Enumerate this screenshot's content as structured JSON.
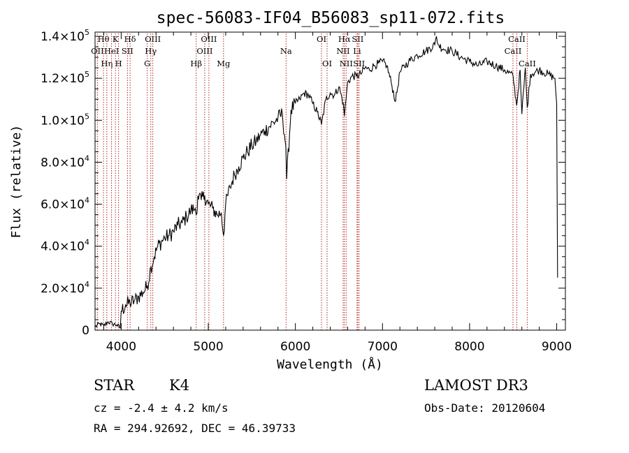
{
  "chart_data": {
    "type": "line",
    "title": "spec-56083-IF04_B56083_sp11-072.fits",
    "xlabel": "Wavelength (Å)",
    "ylabel": "Flux (relative)",
    "xlim": [
      3700,
      9100
    ],
    "ylim": [
      0,
      142000
    ],
    "x_ticks": [
      {
        "value": 4000,
        "label": "4000"
      },
      {
        "value": 5000,
        "label": "5000"
      },
      {
        "value": 6000,
        "label": "6000"
      },
      {
        "value": 7000,
        "label": "7000"
      },
      {
        "value": 8000,
        "label": "8000"
      },
      {
        "value": 9000,
        "label": "9000"
      }
    ],
    "y_ticks": [
      {
        "value": 0,
        "mant": "0",
        "exp": ""
      },
      {
        "value": 20000,
        "mant": "2.0×10",
        "exp": "4"
      },
      {
        "value": 40000,
        "mant": "4.0×10",
        "exp": "4"
      },
      {
        "value": 60000,
        "mant": "6.0×10",
        "exp": "4"
      },
      {
        "value": 80000,
        "mant": "8.0×10",
        "exp": "4"
      },
      {
        "value": 100000,
        "mant": "1.0×10",
        "exp": "5"
      },
      {
        "value": 120000,
        "mant": "1.2×10",
        "exp": "5"
      },
      {
        "value": 140000,
        "mant": "1.4×10",
        "exp": "5"
      }
    ],
    "series": [
      {
        "name": "spectrum",
        "x": [
          3700,
          3750,
          3800,
          3850,
          3900,
          3950,
          3990,
          4000,
          4050,
          4100,
          4150,
          4200,
          4250,
          4300,
          4340,
          4380,
          4420,
          4460,
          4500,
          4550,
          4600,
          4650,
          4700,
          4750,
          4800,
          4850,
          4861,
          4880,
          4920,
          4960,
          5000,
          5050,
          5100,
          5150,
          5175,
          5200,
          5250,
          5300,
          5350,
          5400,
          5450,
          5500,
          5550,
          5600,
          5650,
          5700,
          5750,
          5800,
          5850,
          5890,
          5900,
          5950,
          6000,
          6050,
          6100,
          6150,
          6200,
          6250,
          6300,
          6350,
          6400,
          6450,
          6500,
          6550,
          6563,
          6600,
          6650,
          6700,
          6750,
          6800,
          6850,
          6900,
          6950,
          7000,
          7050,
          7100,
          7150,
          7200,
          7300,
          7400,
          7500,
          7600,
          7620,
          7640,
          7700,
          7800,
          7900,
          8000,
          8100,
          8200,
          8300,
          8400,
          8500,
          8540,
          8580,
          8600,
          8640,
          8662,
          8700,
          8800,
          8900,
          8980,
          9000,
          9010
        ],
        "y": [
          1500,
          3000,
          2000,
          4000,
          3000,
          2500,
          1000,
          9000,
          12000,
          13000,
          14000,
          16000,
          18000,
          21000,
          30000,
          35000,
          40000,
          42000,
          44000,
          45000,
          47000,
          50000,
          51000,
          54000,
          57000,
          58000,
          55000,
          64000,
          62000,
          64000,
          60000,
          58000,
          55000,
          56000,
          45000,
          60000,
          68000,
          74000,
          78000,
          82000,
          85000,
          88000,
          90000,
          93000,
          95000,
          97000,
          99000,
          101000,
          103000,
          88000,
          72000,
          105000,
          108000,
          110000,
          113000,
          112000,
          108000,
          104000,
          98000,
          110000,
          113000,
          112000,
          116000,
          108000,
          102000,
          118000,
          121000,
          121000,
          122000,
          125000,
          124000,
          126000,
          127000,
          128000,
          126000,
          118000,
          109000,
          123000,
          128000,
          131000,
          133000,
          136000,
          140000,
          136000,
          134000,
          133000,
          130000,
          128000,
          126000,
          128000,
          126000,
          124000,
          121000,
          107000,
          124000,
          103000,
          125000,
          106000,
          122000,
          124000,
          122000,
          120000,
          108000,
          25000
        ]
      }
    ],
    "lines": [
      {
        "x": 3727,
        "label": "OII",
        "row": 1
      },
      {
        "x": 3797,
        "label": "Hθ",
        "row": 0
      },
      {
        "x": 3835,
        "label": "Hη",
        "row": 2
      },
      {
        "x": 3889,
        "label": "HeI",
        "row": 1
      },
      {
        "x": 3934,
        "label": "K",
        "row": 0
      },
      {
        "x": 3970,
        "label": "H",
        "row": 2
      },
      {
        "x": 4072,
        "label": "SII",
        "row": 1
      },
      {
        "x": 4102,
        "label": "Hδ",
        "row": 0
      },
      {
        "x": 4300,
        "label": "G",
        "row": 2
      },
      {
        "x": 4340,
        "label": "Hγ",
        "row": 1
      },
      {
        "x": 4363,
        "label": "OIII",
        "row": 0
      },
      {
        "x": 4861,
        "label": "Hβ",
        "row": 2
      },
      {
        "x": 4959,
        "label": "OIII",
        "row": 1
      },
      {
        "x": 5007,
        "label": "OIII",
        "row": 0
      },
      {
        "x": 5175,
        "label": "Mg",
        "row": 2
      },
      {
        "x": 5893,
        "label": "Na",
        "row": 1
      },
      {
        "x": 6300,
        "label": "OI",
        "row": 0
      },
      {
        "x": 6364,
        "label": "OI",
        "row": 2
      },
      {
        "x": 6548,
        "label": "NII",
        "row": 1
      },
      {
        "x": 6563,
        "label": "Hα",
        "row": 0
      },
      {
        "x": 6583,
        "label": "NII",
        "row": 2
      },
      {
        "x": 6708,
        "label": "Li",
        "row": 1
      },
      {
        "x": 6716,
        "label": "SII",
        "row": 0
      },
      {
        "x": 6731,
        "label": "SII",
        "row": 2
      },
      {
        "x": 8498,
        "label": "CaII",
        "row": 1
      },
      {
        "x": 8542,
        "label": "CaII",
        "row": 0
      },
      {
        "x": 8662,
        "label": "CaII",
        "row": 2
      }
    ]
  },
  "info": {
    "class": "STAR",
    "subclass": "K4",
    "survey": "LAMOST DR3",
    "cz": "cz = -2.4 ± 4.2 km/s",
    "obs_date": "Obs-Date: 20120604",
    "coords": "RA = 294.92692, DEC =  46.39733"
  },
  "colors": {
    "line_marker": "#b22222",
    "spectrum": "#000000"
  }
}
